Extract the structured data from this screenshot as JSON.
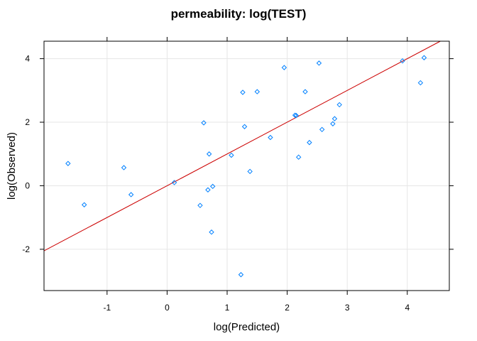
{
  "chart_data": {
    "type": "scatter",
    "title": "permeability: log(TEST)",
    "xlabel": "log(Predicted)",
    "ylabel": "log(Observed)",
    "xlim": [
      -2.05,
      4.7
    ],
    "ylim": [
      -3.3,
      4.55
    ],
    "x_ticks": [
      -1,
      0,
      1,
      2,
      3,
      4
    ],
    "y_ticks": [
      -2,
      0,
      2,
      4
    ],
    "grid": true,
    "point_color": "#0080ff",
    "line_color": "#cc0000",
    "reference_line": {
      "slope": 1,
      "intercept": 0
    },
    "points": [
      {
        "x": -1.65,
        "y": 0.7
      },
      {
        "x": -1.38,
        "y": -0.6
      },
      {
        "x": -0.72,
        "y": 0.57
      },
      {
        "x": -0.6,
        "y": -0.28
      },
      {
        "x": 0.12,
        "y": 0.1
      },
      {
        "x": 0.55,
        "y": -0.62
      },
      {
        "x": 0.61,
        "y": 1.98
      },
      {
        "x": 0.68,
        "y": -0.13
      },
      {
        "x": 0.7,
        "y": 1.0
      },
      {
        "x": 0.74,
        "y": -1.46
      },
      {
        "x": 0.76,
        "y": -0.02
      },
      {
        "x": 1.07,
        "y": 0.96
      },
      {
        "x": 1.23,
        "y": -2.8
      },
      {
        "x": 1.26,
        "y": 2.94
      },
      {
        "x": 1.29,
        "y": 1.86
      },
      {
        "x": 1.38,
        "y": 0.45
      },
      {
        "x": 1.5,
        "y": 2.96
      },
      {
        "x": 1.72,
        "y": 1.52
      },
      {
        "x": 1.95,
        "y": 3.72
      },
      {
        "x": 2.13,
        "y": 2.22
      },
      {
        "x": 2.15,
        "y": 2.21
      },
      {
        "x": 2.19,
        "y": 0.9
      },
      {
        "x": 2.3,
        "y": 2.96
      },
      {
        "x": 2.37,
        "y": 1.36
      },
      {
        "x": 2.53,
        "y": 3.86
      },
      {
        "x": 2.58,
        "y": 1.77
      },
      {
        "x": 2.76,
        "y": 1.95
      },
      {
        "x": 2.79,
        "y": 2.11
      },
      {
        "x": 2.87,
        "y": 2.55
      },
      {
        "x": 3.92,
        "y": 3.93
      },
      {
        "x": 4.22,
        "y": 3.24
      },
      {
        "x": 4.28,
        "y": 4.03
      }
    ]
  }
}
